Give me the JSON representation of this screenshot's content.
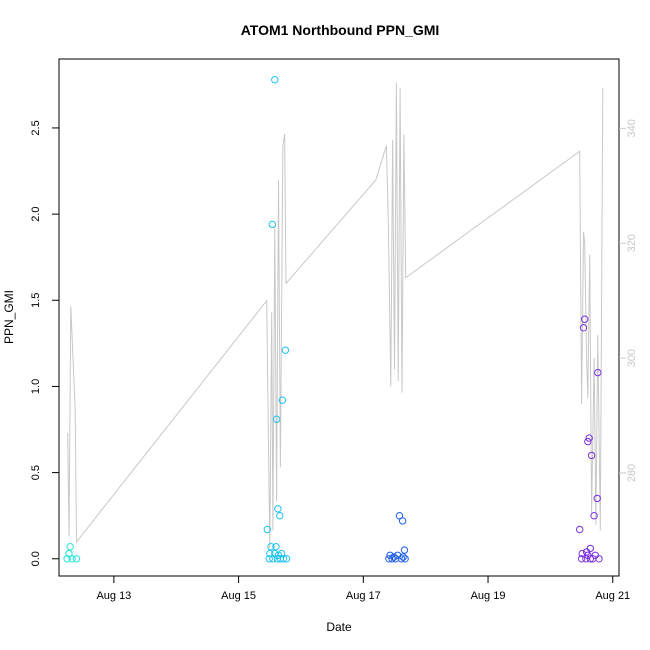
{
  "chart_data": {
    "type": "scatter",
    "title": "ATOM1 Northbound PPN_GMI",
    "xlabel": "Date",
    "ylabel": "PPN_GMI",
    "x_ticks": [
      "Aug 13",
      "Aug 15",
      "Aug 17",
      "Aug 19",
      "Aug 21"
    ],
    "y_ticks": [
      "0.0",
      "0.5",
      "1.0",
      "1.5",
      "2.0",
      "2.5"
    ],
    "y2_ticks": [
      "280",
      "300",
      "320",
      "340"
    ],
    "xlim_days": [
      12.12,
      21.1
    ],
    "ylim": [
      -0.1,
      2.9
    ],
    "y2lim": [
      262.07,
      352.07
    ],
    "grid": false,
    "colors": {
      "line": "#c8c8c8",
      "axis": "#000000",
      "right_axis": "#c8c8c8",
      "aug12": "#22e5d5",
      "aug15": "#1ec2f0",
      "aug17": "#1f5fe8",
      "aug20": "#7a32e0"
    },
    "line_series": {
      "axis": "right",
      "points": [
        [
          12.26,
          287
        ],
        [
          12.28,
          269
        ],
        [
          12.31,
          309
        ],
        [
          12.38,
          291
        ],
        [
          12.4,
          268
        ],
        [
          15.45,
          310
        ],
        [
          15.47,
          293
        ],
        [
          15.5,
          267
        ],
        [
          15.53,
          308
        ],
        [
          15.55,
          270
        ],
        [
          15.58,
          323
        ],
        [
          15.61,
          275
        ],
        [
          15.64,
          331
        ],
        [
          15.67,
          281
        ],
        [
          15.71,
          337
        ],
        [
          15.74,
          339
        ],
        [
          15.76,
          313
        ],
        [
          17.2,
          331
        ],
        [
          17.37,
          337
        ],
        [
          17.4,
          324
        ],
        [
          17.44,
          295
        ],
        [
          17.47,
          338
        ],
        [
          17.5,
          298
        ],
        [
          17.53,
          348
        ],
        [
          17.56,
          296
        ],
        [
          17.59,
          347
        ],
        [
          17.62,
          294
        ],
        [
          17.65,
          339
        ],
        [
          17.68,
          314
        ],
        [
          20.47,
          336
        ],
        [
          20.5,
          292
        ],
        [
          20.53,
          322
        ],
        [
          20.55,
          320
        ],
        [
          20.58,
          300
        ],
        [
          20.6,
          293
        ],
        [
          20.63,
          318
        ],
        [
          20.66,
          273
        ],
        [
          20.7,
          300
        ],
        [
          20.73,
          271
        ],
        [
          20.76,
          304
        ],
        [
          20.8,
          270
        ],
        [
          20.84,
          347
        ]
      ]
    },
    "scatter_groups": [
      {
        "color_key": "aug12",
        "points": [
          [
            12.25,
            0.0
          ],
          [
            12.28,
            0.03
          ],
          [
            12.3,
            0.07
          ],
          [
            12.33,
            0.0
          ],
          [
            12.4,
            0.0
          ]
        ]
      },
      {
        "color_key": "aug15",
        "points": [
          [
            15.46,
            0.17
          ],
          [
            15.49,
            0.0
          ],
          [
            15.5,
            0.03
          ],
          [
            15.52,
            0.07
          ],
          [
            15.54,
            1.94
          ],
          [
            15.55,
            0.0
          ],
          [
            15.58,
            2.78
          ],
          [
            15.6,
            0.07
          ],
          [
            15.61,
            0.81
          ],
          [
            15.62,
            0.0
          ],
          [
            15.63,
            0.29
          ],
          [
            15.64,
            0.02
          ],
          [
            15.66,
            0.25
          ],
          [
            15.67,
            0.0
          ],
          [
            15.69,
            0.03
          ],
          [
            15.7,
            0.92
          ],
          [
            15.72,
            0.0
          ],
          [
            15.75,
            1.21
          ],
          [
            15.58,
            0.03
          ],
          [
            15.77,
            0.0
          ]
        ]
      },
      {
        "color_key": "aug17",
        "points": [
          [
            17.41,
            0.0
          ],
          [
            17.43,
            0.02
          ],
          [
            17.46,
            0.0
          ],
          [
            17.49,
            0.01
          ],
          [
            17.52,
            0.0
          ],
          [
            17.55,
            0.02
          ],
          [
            17.58,
            0.25
          ],
          [
            17.61,
            0.0
          ],
          [
            17.63,
            0.22
          ],
          [
            17.64,
            0.01
          ],
          [
            17.66,
            0.05
          ],
          [
            17.67,
            0.0
          ]
        ]
      },
      {
        "color_key": "aug20",
        "points": [
          [
            20.47,
            0.17
          ],
          [
            20.5,
            0.0
          ],
          [
            20.51,
            0.03
          ],
          [
            20.53,
            1.34
          ],
          [
            20.55,
            1.39
          ],
          [
            20.57,
            0.0
          ],
          [
            20.58,
            0.04
          ],
          [
            20.6,
            0.68
          ],
          [
            20.62,
            0.7
          ],
          [
            20.64,
            0.06
          ],
          [
            20.66,
            0.6
          ],
          [
            20.68,
            0.0
          ],
          [
            20.7,
            0.25
          ],
          [
            20.72,
            0.02
          ],
          [
            20.75,
            0.35
          ],
          [
            20.76,
            1.08
          ],
          [
            20.78,
            0.0
          ],
          [
            20.6,
            0.02
          ],
          [
            20.64,
            0.0
          ]
        ]
      }
    ]
  }
}
